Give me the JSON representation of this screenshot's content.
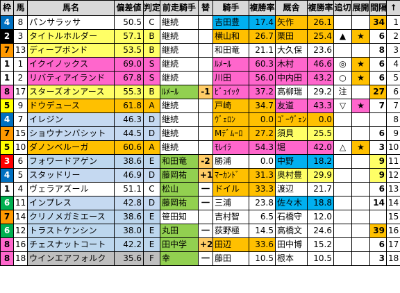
{
  "colors": {
    "wakuban": {
      "1": "#ffffff",
      "2": "#000000",
      "3": "#ff0000",
      "4": "#0070c0",
      "5": "#ffff00",
      "6": "#00b050",
      "7": "#ff9900",
      "8": "#ff66cc"
    },
    "wakuban_text": {
      "1": "#000000",
      "2": "#ffffff",
      "3": "#ffffff",
      "4": "#ffffff",
      "5": "#000000",
      "6": "#ffffff",
      "7": "#000000",
      "8": "#000000"
    },
    "grade": {
      "S": "#ff66cc",
      "A": "#ffc000",
      "B": "#ffff66",
      "C": "#ffffff",
      "D": "#c5d9f1",
      "E": "#bdd7ee",
      "F": "#bfbfbf"
    },
    "jockey_change": "#ffcc66",
    "pink": "#ff66cc",
    "orange": "#ffc000",
    "yellow": "#ffff66",
    "blue": "#00b0f0",
    "green": "#92d050",
    "light_blue": "#bdd7ee"
  },
  "headers": [
    "枠",
    "馬",
    "馬名",
    "偏差値",
    "判定",
    "前走騎手",
    "替",
    "騎手",
    "複勝率",
    "厩舎",
    "複勝率",
    "追切",
    "展開",
    "間隔",
    "↑"
  ],
  "rows": [
    {
      "waku": "4",
      "uma": "8",
      "horse": "パンサラッサ",
      "hensa": "50.5",
      "grade": "C",
      "zenso": "継続",
      "kae": "",
      "jockey": "吉田豊",
      "j_rate": "17.4",
      "stable": "矢作",
      "s_rate": "26.1",
      "oikiri": "",
      "tenkai": "",
      "interval": "34",
      "arrow": "1",
      "jockey_bg": "blue",
      "stable_bg": "orange",
      "tenkai_bg": "",
      "interval_bg": "orange"
    },
    {
      "waku": "2",
      "uma": "3",
      "horse": "タイトルホルダー",
      "hensa": "57.1",
      "grade": "B",
      "zenso": "継続",
      "kae": "",
      "jockey": "横山和",
      "j_rate": "26.7",
      "stable": "栗田",
      "s_rate": "25.4",
      "oikiri": "▲",
      "tenkai": "★",
      "interval": "6",
      "arrow": "2",
      "jockey_bg": "orange",
      "stable_bg": "orange",
      "tenkai_bg": "orange",
      "interval_bg": ""
    },
    {
      "waku": "7",
      "uma": "13",
      "horse": "ディープボンド",
      "hensa": "53.5",
      "grade": "B",
      "zenso": "継続",
      "kae": "",
      "jockey": "和田竜",
      "j_rate": "21.1",
      "stable": "大久保",
      "s_rate": "23.6",
      "oikiri": "",
      "tenkai": "",
      "interval": "8",
      "arrow": "3",
      "jockey_bg": "",
      "stable_bg": "",
      "tenkai_bg": "",
      "interval_bg": ""
    },
    {
      "waku": "1",
      "uma": "1",
      "horse": "イクイノックス",
      "hensa": "69.0",
      "grade": "S",
      "zenso": "継続",
      "kae": "",
      "jockey": "ﾙﾒｰﾙ",
      "j_rate": "60.3",
      "stable": "木村",
      "s_rate": "46.6",
      "oikiri": "◎",
      "tenkai": "★",
      "interval": "6",
      "arrow": "4",
      "jockey_bg": "pink",
      "stable_bg": "pink",
      "tenkai_bg": "orange",
      "interval_bg": ""
    },
    {
      "waku": "1",
      "uma": "2",
      "horse": "リバティアイランド",
      "hensa": "67.8",
      "grade": "S",
      "zenso": "継続",
      "kae": "",
      "jockey": "川田",
      "j_rate": "56.0",
      "stable": "中内田",
      "s_rate": "43.2",
      "oikiri": "○",
      "tenkai": "★",
      "interval": "6",
      "arrow": "5",
      "jockey_bg": "pink",
      "stable_bg": "pink",
      "tenkai_bg": "orange",
      "interval_bg": ""
    },
    {
      "waku": "8",
      "uma": "17",
      "horse": "スターズオンアース",
      "hensa": "55.3",
      "grade": "B",
      "zenso": "ﾙﾒｰﾙ",
      "kae": "-1",
      "jockey": "ﾋﾞｭｲｯｸ",
      "j_rate": "37.2",
      "stable": "高柳瑞",
      "s_rate": "29.2",
      "oikiri": "注",
      "tenkai": "",
      "interval": "27",
      "arrow": "6",
      "jockey_bg": "pink",
      "stable_bg": "",
      "tenkai_bg": "",
      "interval_bg": "orange"
    },
    {
      "waku": "5",
      "uma": "9",
      "horse": "ドウデュース",
      "hensa": "61.8",
      "grade": "A",
      "zenso": "継続",
      "kae": "",
      "jockey": "戸崎",
      "j_rate": "34.7",
      "stable": "友道",
      "s_rate": "43.3",
      "oikiri": "▽",
      "tenkai": "★",
      "interval": "7",
      "arrow": "7",
      "jockey_bg": "orange",
      "stable_bg": "pink",
      "tenkai_bg": "pink",
      "interval_bg": ""
    },
    {
      "waku": "4",
      "uma": "7",
      "horse": "イレジン",
      "hensa": "46.3",
      "grade": "D",
      "zenso": "継続",
      "kae": "",
      "jockey": "ｳﾞｪﾛﾝ",
      "j_rate": "0.0",
      "stable": "ｺﾞｰｳﾞｪﾝ",
      "s_rate": "0.0",
      "oikiri": "",
      "tenkai": "",
      "interval": "",
      "arrow": "8",
      "jockey_bg": "orange",
      "stable_bg": "orange",
      "tenkai_bg": "",
      "interval_bg": ""
    },
    {
      "waku": "7",
      "uma": "15",
      "horse": "ショウナンバシット",
      "hensa": "44.5",
      "grade": "D",
      "zenso": "継続",
      "kae": "",
      "jockey": "Mﾃﾞﾑｰﾛ",
      "j_rate": "27.2",
      "stable": "須貝",
      "s_rate": "25.5",
      "oikiri": "",
      "tenkai": "",
      "interval": "6",
      "arrow": "9",
      "jockey_bg": "orange",
      "stable_bg": "yellow",
      "tenkai_bg": "",
      "interval_bg": ""
    },
    {
      "waku": "5",
      "uma": "10",
      "horse": "ダノンベルーガ",
      "hensa": "60.6",
      "grade": "A",
      "zenso": "継続",
      "kae": "",
      "jockey": "ﾓﾚｲﾗ",
      "j_rate": "54.3",
      "stable": "堀",
      "s_rate": "42.0",
      "oikiri": "△",
      "tenkai": "★",
      "interval": "3",
      "arrow": "10",
      "jockey_bg": "pink",
      "stable_bg": "pink",
      "tenkai_bg": "orange",
      "interval_bg": ""
    },
    {
      "waku": "3",
      "uma": "6",
      "horse": "フォワードアゲン",
      "hensa": "38.6",
      "grade": "E",
      "zenso": "和田竜",
      "kae": "-2",
      "jockey": "勝浦",
      "j_rate": "0.0",
      "stable": "中野",
      "s_rate": "18.2",
      "oikiri": "",
      "tenkai": "",
      "interval": "9",
      "arrow": "11",
      "jockey_bg": "",
      "stable_bg": "blue",
      "tenkai_bg": "",
      "interval_bg": "yellow"
    },
    {
      "waku": "4",
      "uma": "5",
      "horse": "スタッドリー",
      "hensa": "46.9",
      "grade": "D",
      "zenso": "藤岡祐",
      "kae": "+1",
      "jockey": "ﾏｰｶﾝﾄﾞ",
      "j_rate": "31.3",
      "stable": "奥村豊",
      "s_rate": "29.9",
      "oikiri": "",
      "tenkai": "",
      "interval": "9",
      "arrow": "12",
      "jockey_bg": "orange",
      "stable_bg": "yellow",
      "tenkai_bg": "",
      "interval_bg": "yellow"
    },
    {
      "waku": "1",
      "uma": "4",
      "horse": "ヴェラアズール",
      "hensa": "51.1",
      "grade": "C",
      "zenso": "松山",
      "kae": "一",
      "jockey": "ドイル",
      "j_rate": "33.3",
      "stable": "渡辺",
      "s_rate": "21.7",
      "oikiri": "",
      "tenkai": "",
      "interval": "6",
      "arrow": "13",
      "jockey_bg": "orange",
      "stable_bg": "",
      "tenkai_bg": "",
      "interval_bg": ""
    },
    {
      "waku": "6",
      "uma": "11",
      "horse": "インプレス",
      "hensa": "42.8",
      "grade": "D",
      "zenso": "藤岡祐",
      "kae": "一",
      "jockey": "三浦",
      "j_rate": "23.8",
      "stable": "佐々木",
      "s_rate": "18.8",
      "oikiri": "",
      "tenkai": "",
      "interval": "14",
      "arrow": "14",
      "jockey_bg": "",
      "stable_bg": "blue",
      "tenkai_bg": "",
      "interval_bg": ""
    },
    {
      "waku": "7",
      "uma": "14",
      "horse": "クリノメガミエース",
      "hensa": "38.6",
      "grade": "E",
      "zenso": "笹田知",
      "kae": "",
      "jockey": "吉村智",
      "j_rate": "6.5",
      "stable": "石橋守",
      "s_rate": "12.0",
      "oikiri": "",
      "tenkai": "",
      "interval": "",
      "arrow": "15",
      "jockey_bg": "",
      "stable_bg": "",
      "tenkai_bg": "",
      "interval_bg": ""
    },
    {
      "waku": "6",
      "uma": "12",
      "horse": "トラストケンシン",
      "hensa": "38.0",
      "grade": "E",
      "zenso": "丸田",
      "kae": "一",
      "jockey": "荻野極",
      "j_rate": "14.5",
      "stable": "高橋文",
      "s_rate": "24.6",
      "oikiri": "",
      "tenkai": "",
      "interval": "39",
      "arrow": "16",
      "jockey_bg": "",
      "stable_bg": "",
      "tenkai_bg": "",
      "interval_bg": "orange"
    },
    {
      "waku": "8",
      "uma": "16",
      "horse": "チェスナットコート",
      "hensa": "42.2",
      "grade": "E",
      "zenso": "田中学",
      "kae": "+2",
      "jockey": "田辺",
      "j_rate": "33.6",
      "stable": "田中博",
      "s_rate": "15.2",
      "oikiri": "",
      "tenkai": "",
      "interval": "6",
      "arrow": "17",
      "jockey_bg": "orange",
      "stable_bg": "",
      "tenkai_bg": "",
      "interval_bg": ""
    },
    {
      "waku": "8",
      "uma": "18",
      "horse": "ウインエアフォルク",
      "hensa": "35.6",
      "grade": "F",
      "zenso": "幸",
      "kae": "一",
      "jockey": "藤田",
      "j_rate": "10.5",
      "stable": "根本",
      "s_rate": "10.5",
      "oikiri": "",
      "tenkai": "",
      "interval": "3",
      "arrow": "18",
      "jockey_bg": "",
      "stable_bg": "",
      "tenkai_bg": "",
      "interval_bg": ""
    }
  ]
}
